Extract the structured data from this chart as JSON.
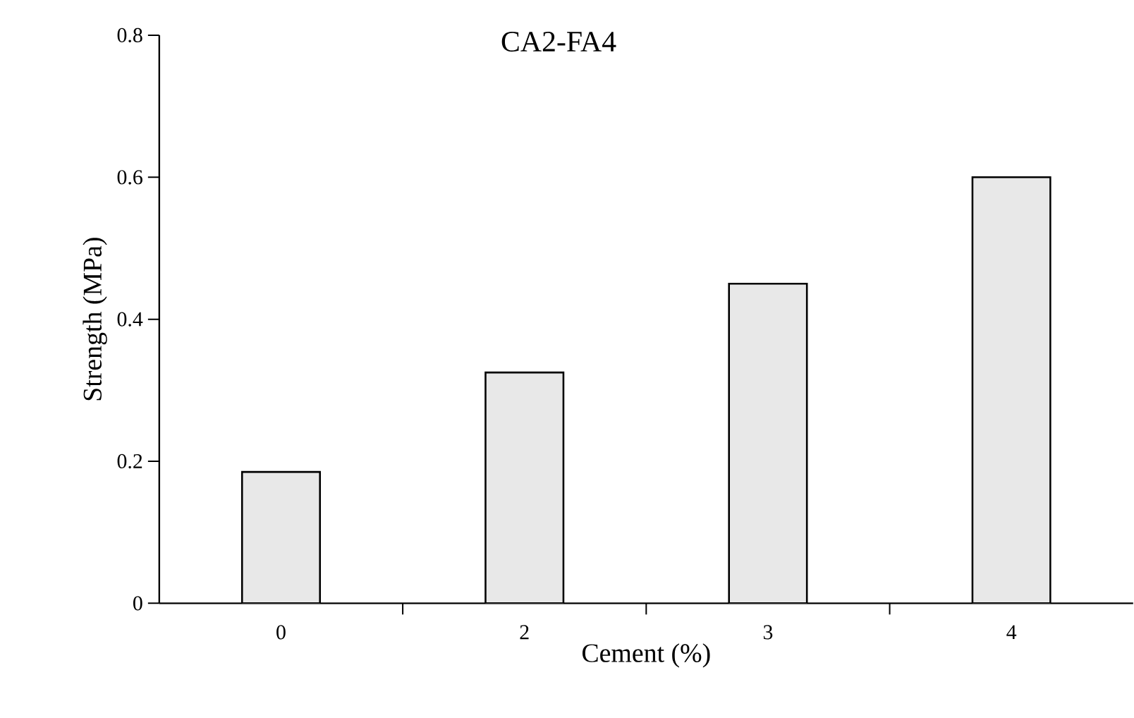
{
  "chart_data": {
    "type": "bar",
    "title": "CA2-FA4",
    "xlabel": "Cement (%)",
    "ylabel": "Strength (MPa)",
    "categories": [
      "0",
      "2",
      "3",
      "4"
    ],
    "values": [
      0.185,
      0.325,
      0.45,
      0.6
    ],
    "color": "#e8e8e8",
    "ylim": [
      0,
      0.8
    ],
    "yticks": [
      0,
      0.2,
      0.4,
      0.6,
      0.8
    ]
  }
}
